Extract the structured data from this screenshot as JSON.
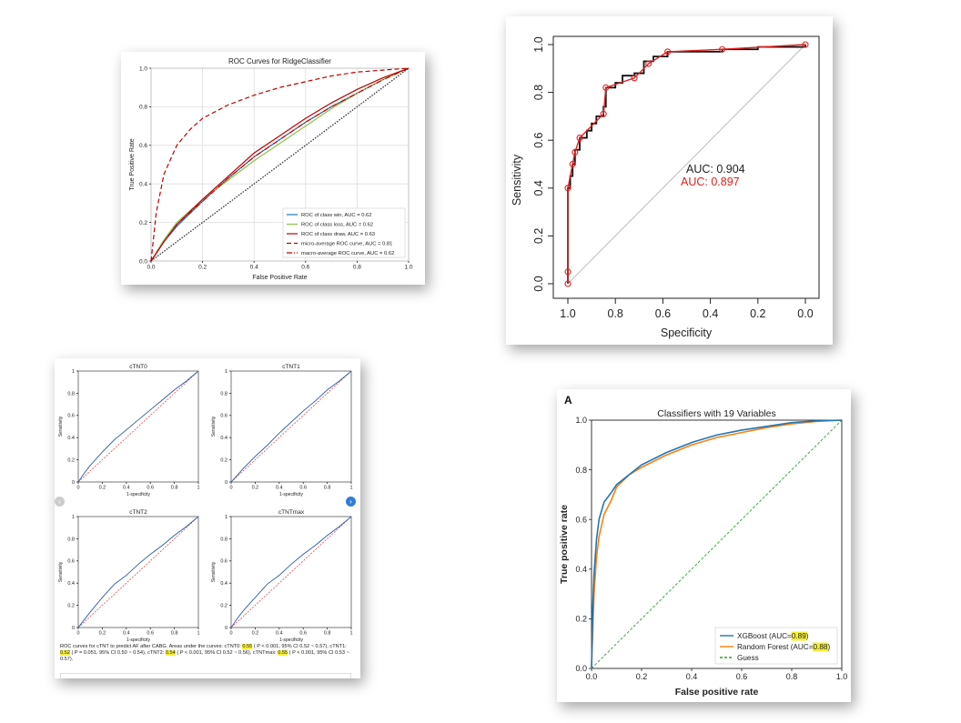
{
  "colors": {
    "roc_win": "#1f77b4",
    "roc_loss": "#8bc34a",
    "roc_draw": "#c00000",
    "roc_micro": "#c00000",
    "roc_macro": "#c00000",
    "proc_black": "#111111",
    "proc_red": "#e02020",
    "ctnt_curve": "#2b5ca8",
    "ctnt_diag": "#e03030",
    "xgb": "#1f77b4",
    "rf": "#ff7f0e",
    "guess": "#2ca02c",
    "highlight": "#f5ef3a",
    "nav_prev": "#cccccc",
    "nav_next": "#2f7fd8"
  },
  "chart_data": [
    {
      "type": "line",
      "title": "ROC Curves for RidgeClassifier",
      "xlabel": "False Positive Rate",
      "ylabel": "True Positive Rate",
      "xlim": [
        0,
        1
      ],
      "ylim": [
        0,
        1
      ],
      "xticks": [
        "0.0",
        "0.2",
        "0.4",
        "0.6",
        "0.8",
        "1.0"
      ],
      "yticks": [
        "0.0",
        "0.2",
        "0.4",
        "0.6",
        "0.8",
        "1.0"
      ],
      "grid": true,
      "legend_position": "lower-right",
      "series": [
        {
          "name": "ROC of class win, AUC = 0.62",
          "style": "solid",
          "x": [
            0,
            0.05,
            0.1,
            0.2,
            0.3,
            0.4,
            0.5,
            0.6,
            0.7,
            0.8,
            0.9,
            1.0
          ],
          "y": [
            0,
            0.1,
            0.18,
            0.31,
            0.43,
            0.54,
            0.63,
            0.72,
            0.8,
            0.87,
            0.94,
            1.0
          ]
        },
        {
          "name": "ROC of class loss, AUC = 0.62",
          "style": "solid",
          "x": [
            0,
            0.05,
            0.1,
            0.2,
            0.3,
            0.4,
            0.5,
            0.6,
            0.7,
            0.8,
            0.9,
            1.0
          ],
          "y": [
            0,
            0.11,
            0.2,
            0.32,
            0.42,
            0.52,
            0.61,
            0.7,
            0.79,
            0.87,
            0.94,
            1.0
          ]
        },
        {
          "name": "ROC of class draw, AUC = 0.63",
          "style": "solid",
          "x": [
            0,
            0.05,
            0.1,
            0.2,
            0.3,
            0.4,
            0.5,
            0.6,
            0.7,
            0.8,
            0.9,
            1.0
          ],
          "y": [
            0,
            0.1,
            0.19,
            0.32,
            0.44,
            0.56,
            0.65,
            0.74,
            0.82,
            0.89,
            0.95,
            1.0
          ]
        },
        {
          "name": "micro-average ROC curve, AUC = 0.81",
          "style": "dashed",
          "x": [
            0,
            0.02,
            0.05,
            0.1,
            0.15,
            0.2,
            0.3,
            0.4,
            0.5,
            0.6,
            0.7,
            0.8,
            0.9,
            1.0
          ],
          "y": [
            0,
            0.25,
            0.45,
            0.6,
            0.68,
            0.74,
            0.81,
            0.86,
            0.9,
            0.93,
            0.96,
            0.98,
            0.99,
            1.0
          ]
        },
        {
          "name": "macro-average ROC curve, AUC = 0.62",
          "style": "dashdot",
          "x": [
            0,
            0.05,
            0.1,
            0.2,
            0.3,
            0.4,
            0.5,
            0.6,
            0.7,
            0.8,
            0.9,
            1.0
          ],
          "y": [
            0,
            0.1,
            0.19,
            0.31,
            0.43,
            0.54,
            0.63,
            0.72,
            0.8,
            0.87,
            0.94,
            1.0
          ]
        },
        {
          "name": "",
          "style": "dotted",
          "x": [
            0,
            1
          ],
          "y": [
            0,
            1
          ]
        }
      ]
    },
    {
      "type": "line",
      "title": "",
      "xlabel": "Specificity",
      "ylabel": "Sensitivity",
      "xlim": [
        1.0,
        0.0
      ],
      "ylim": [
        0,
        1
      ],
      "xticks": [
        "1.0",
        "0.8",
        "0.6",
        "0.4",
        "0.2",
        "0.0"
      ],
      "yticks": [
        "0.0",
        "0.2",
        "0.4",
        "0.6",
        "0.8",
        "1.0"
      ],
      "annotations": [
        "AUC: 0.904",
        "AUC: 0.897"
      ],
      "series": [
        {
          "name": "",
          "style": "step",
          "x": [
            1.0,
            1.0,
            0.99,
            0.98,
            0.97,
            0.95,
            0.92,
            0.9,
            0.88,
            0.85,
            0.84,
            0.8,
            0.77,
            0.72,
            0.68,
            0.64,
            0.58,
            0.35,
            0.2,
            0.0
          ],
          "y": [
            0.0,
            0.4,
            0.45,
            0.5,
            0.56,
            0.61,
            0.64,
            0.67,
            0.7,
            0.74,
            0.82,
            0.84,
            0.87,
            0.88,
            0.93,
            0.95,
            0.97,
            0.98,
            0.99,
            1.0
          ]
        },
        {
          "name": "",
          "style": "points",
          "x": [
            1.0,
            1.0,
            1.0,
            0.98,
            0.97,
            0.95,
            0.85,
            0.84,
            0.72,
            0.66,
            0.58,
            0.35,
            0.0
          ],
          "y": [
            0.0,
            0.05,
            0.4,
            0.5,
            0.55,
            0.61,
            0.71,
            0.82,
            0.86,
            0.92,
            0.97,
            0.98,
            1.0
          ]
        }
      ]
    },
    {
      "type": "line",
      "title": "cTNT0",
      "xlabel": "1-specificity",
      "ylabel": "Sensitivity",
      "xlim": [
        0,
        1
      ],
      "ylim": [
        0,
        1
      ],
      "xticks": [
        "0",
        "0.2",
        "0.4",
        "0.6",
        "0.8",
        "1"
      ],
      "yticks": [
        "0",
        "0.2",
        "0.4",
        "0.6",
        "0.8",
        "1"
      ],
      "series": [
        {
          "name": "",
          "x": [
            0,
            0.05,
            0.1,
            0.2,
            0.3,
            0.4,
            0.5,
            0.6,
            0.7,
            0.8,
            0.9,
            1.0
          ],
          "y": [
            0,
            0.08,
            0.15,
            0.27,
            0.38,
            0.47,
            0.56,
            0.65,
            0.74,
            0.83,
            0.91,
            1.0
          ]
        },
        {
          "name": "",
          "style": "dashed",
          "x": [
            0,
            1
          ],
          "y": [
            0,
            1
          ]
        }
      ]
    },
    {
      "type": "line",
      "title": "cTNT1",
      "xlabel": "1-specificity",
      "ylabel": "Sensitivity",
      "xlim": [
        0,
        1
      ],
      "ylim": [
        0,
        1
      ],
      "xticks": [
        "0",
        "0.2",
        "0.4",
        "0.6",
        "0.8",
        "1"
      ],
      "yticks": [
        "0",
        "0.2",
        "0.4",
        "0.6",
        "0.8",
        "1"
      ],
      "series": [
        {
          "name": "",
          "x": [
            0,
            0.05,
            0.1,
            0.2,
            0.3,
            0.4,
            0.5,
            0.6,
            0.7,
            0.8,
            0.9,
            1.0
          ],
          "y": [
            0,
            0.06,
            0.12,
            0.23,
            0.33,
            0.44,
            0.54,
            0.64,
            0.73,
            0.83,
            0.91,
            1.0
          ]
        },
        {
          "name": "",
          "style": "dashed",
          "x": [
            0,
            1
          ],
          "y": [
            0,
            1
          ]
        }
      ]
    },
    {
      "type": "line",
      "title": "cTNT2",
      "xlabel": "1-specificity",
      "ylabel": "Sensitivity",
      "xlim": [
        0,
        1
      ],
      "ylim": [
        0,
        1
      ],
      "xticks": [
        "0",
        "0.2",
        "0.4",
        "0.6",
        "0.8",
        "1"
      ],
      "yticks": [
        "0",
        "0.2",
        "0.4",
        "0.6",
        "0.8",
        "1"
      ],
      "series": [
        {
          "name": "",
          "x": [
            0,
            0.05,
            0.1,
            0.2,
            0.3,
            0.4,
            0.5,
            0.6,
            0.7,
            0.8,
            0.9,
            1.0
          ],
          "y": [
            0,
            0.07,
            0.14,
            0.27,
            0.39,
            0.47,
            0.57,
            0.66,
            0.74,
            0.83,
            0.91,
            1.0
          ]
        },
        {
          "name": "",
          "style": "dashed",
          "x": [
            0,
            1
          ],
          "y": [
            0,
            1
          ]
        }
      ]
    },
    {
      "type": "line",
      "title": "cTNTmax",
      "xlabel": "1-specificity",
      "ylabel": "Sensitivity",
      "xlim": [
        0,
        1
      ],
      "ylim": [
        0,
        1
      ],
      "xticks": [
        "0",
        "0.2",
        "0.4",
        "0.6",
        "0.8",
        "1"
      ],
      "yticks": [
        "0",
        "0.2",
        "0.4",
        "0.6",
        "0.8",
        "1"
      ],
      "series": [
        {
          "name": "",
          "x": [
            0,
            0.05,
            0.1,
            0.2,
            0.3,
            0.4,
            0.5,
            0.6,
            0.7,
            0.8,
            0.9,
            1.0
          ],
          "y": [
            0,
            0.08,
            0.15,
            0.27,
            0.39,
            0.47,
            0.57,
            0.66,
            0.74,
            0.83,
            0.91,
            1.0
          ]
        },
        {
          "name": "",
          "style": "dashed",
          "x": [
            0,
            1
          ],
          "y": [
            0,
            1
          ]
        }
      ]
    },
    {
      "type": "line",
      "title": "Classifiers with 19 Variables",
      "panel_label": "A",
      "xlabel": "False positive rate",
      "ylabel": "True positive rate",
      "xlim": [
        0,
        1
      ],
      "ylim": [
        0,
        1
      ],
      "xticks": [
        "0.0",
        "0.2",
        "0.4",
        "0.6",
        "0.8",
        "1.0"
      ],
      "yticks": [
        "0.0",
        "0.2",
        "0.4",
        "0.6",
        "0.8",
        "1.0"
      ],
      "legend_position": "lower-right",
      "series": [
        {
          "name": "XGBoost (AUC=0.89)",
          "legend_prefix": "XGBoost (AUC=",
          "legend_value": "0.89",
          "legend_suffix": ")",
          "style": "solid",
          "x": [
            0,
            0.005,
            0.01,
            0.02,
            0.03,
            0.05,
            0.08,
            0.1,
            0.15,
            0.2,
            0.3,
            0.4,
            0.5,
            0.6,
            0.7,
            0.8,
            0.9,
            1.0
          ],
          "y": [
            0,
            0.25,
            0.38,
            0.52,
            0.6,
            0.67,
            0.71,
            0.74,
            0.78,
            0.82,
            0.87,
            0.91,
            0.94,
            0.96,
            0.975,
            0.99,
            0.997,
            1.0
          ]
        },
        {
          "name": "Random Forest (AUC=0.88)",
          "legend_prefix": "Random Forest (AUC=",
          "legend_value": "0.88",
          "legend_suffix": ")",
          "style": "solid",
          "x": [
            0,
            0.005,
            0.01,
            0.02,
            0.03,
            0.05,
            0.08,
            0.1,
            0.15,
            0.2,
            0.3,
            0.4,
            0.5,
            0.6,
            0.7,
            0.8,
            0.9,
            1.0
          ],
          "y": [
            0,
            0.15,
            0.3,
            0.45,
            0.53,
            0.62,
            0.68,
            0.73,
            0.78,
            0.81,
            0.86,
            0.9,
            0.93,
            0.95,
            0.97,
            0.985,
            0.995,
            1.0
          ]
        },
        {
          "name": "Guess",
          "style": "dashed",
          "x": [
            0,
            1
          ],
          "y": [
            0,
            1
          ]
        }
      ]
    }
  ],
  "caption": {
    "parts": [
      {
        "text": "ROC curves for cTNT to predict AF after CABG. Areas under the curves: cTNT0: ",
        "hl": false
      },
      {
        "text": "0.55",
        "hl": true
      },
      {
        "text": " ( P < 0.001, 95% CI 0.52 ~ 0.57), cTNT1: ",
        "hl": false
      },
      {
        "text": "0.52",
        "hl": true
      },
      {
        "text": " ( P = 0.051, 95% CI 0.50 ~ 0.54), cTNT2: ",
        "hl": false
      },
      {
        "text": "0.54",
        "hl": true
      },
      {
        "text": " ( P < 0.001, 95% CI 0.52 ~ 0.56), cTNTmax: ",
        "hl": false
      },
      {
        "text": "0.55",
        "hl": true
      },
      {
        "text": " ( P < 0.001, 95% CI 0.53 ~ 0.57).",
        "hl": false
      }
    ]
  },
  "nav": {
    "prev_icon": "‹",
    "next_icon": "›"
  }
}
